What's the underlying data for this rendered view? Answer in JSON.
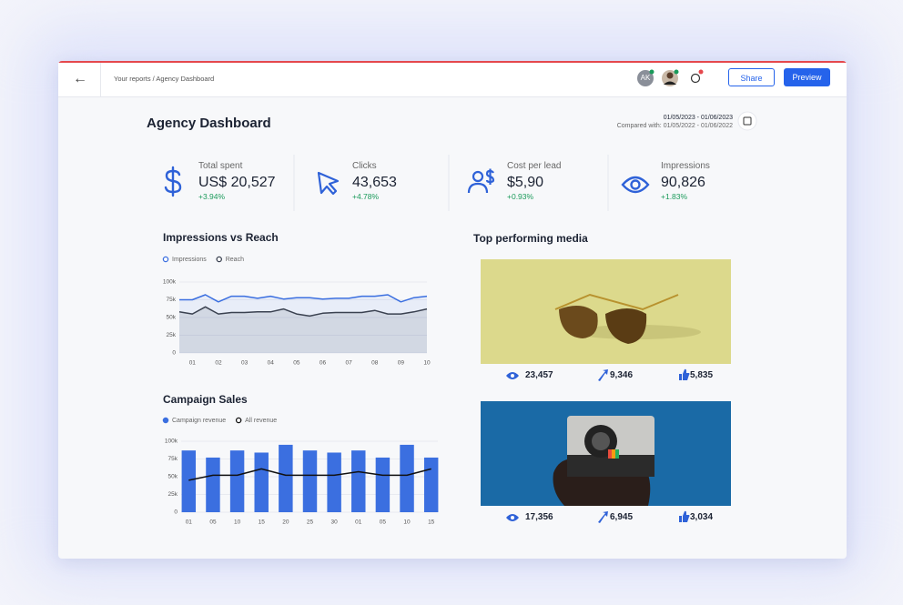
{
  "header": {
    "breadcrumb": "Your reports / Agency Dashboard",
    "avatar": "AK",
    "buttons": [
      "Share",
      "Preview"
    ]
  },
  "dashboard": {
    "title": "Agency Dashboard",
    "date_range": "01/05/2023 - 01/06/2023",
    "compared": "Compared with: 01/05/2022 - 01/06/2022"
  },
  "kpis": [
    {
      "label": "Total spent",
      "value": "US$ 20,527",
      "change": "+3.94%"
    },
    {
      "label": "Clicks",
      "value": "43,653",
      "change": "+4.78%"
    },
    {
      "label": "Cost per lead",
      "value": "$5,90",
      "change": "+0.93%"
    },
    {
      "label": "Impressions",
      "value": "90,826",
      "change": "+1.83%"
    }
  ],
  "chart_data": [
    {
      "type": "line",
      "title": "Impressions vs Reach",
      "categories": [
        null,
        "01",
        null,
        "02",
        null,
        "03",
        null,
        "04",
        null,
        "05",
        null,
        "06",
        null,
        "07",
        null,
        "08",
        null,
        "09",
        null,
        "10"
      ],
      "series": [
        {
          "name": "Impressions",
          "color": "#3b6fe0",
          "values": [
            75000,
            75000,
            82000,
            72000,
            80000,
            80000,
            77000,
            80000,
            76000,
            78000,
            78000,
            76000,
            77000,
            77000,
            80000,
            80000,
            82000,
            72000,
            78000,
            80000
          ]
        },
        {
          "name": "Reach",
          "color": "#3a4150",
          "values": [
            58000,
            55000,
            65000,
            55000,
            57000,
            57000,
            58000,
            58000,
            62000,
            55000,
            52000,
            56000,
            57000,
            57000,
            57000,
            60000,
            55000,
            55000,
            58000,
            62000
          ]
        }
      ],
      "ylim": [
        0,
        100000
      ],
      "yticks": [
        0,
        {
          "value": 25000,
          "label": "25k"
        },
        {
          "value": 50000,
          "label": "50k"
        },
        {
          "value": 75000,
          "label": "75k"
        },
        {
          "value": 100000,
          "label": "100k"
        }
      ],
      "grid": true
    },
    {
      "type": "bar",
      "title": "Campaign Sales",
      "categories": [
        "01",
        "05",
        "10",
        "15",
        "20",
        "25",
        "30",
        "01",
        "05",
        "10",
        "15"
      ],
      "series": [
        {
          "name": "Campaign revenue",
          "color": "#3b6fe0",
          "values": [
            87000,
            77000,
            87000,
            84000,
            95000,
            87000,
            84000,
            87000,
            77000,
            95000,
            77000
          ]
        },
        {
          "name": "All revenue",
          "type": "line",
          "color": "#111111",
          "values": [
            45000,
            52000,
            52000,
            61000,
            52000,
            52000,
            52000,
            57000,
            52000,
            52000,
            61000
          ]
        }
      ],
      "ylim": [
        0,
        100000
      ],
      "yticks": [
        0,
        {
          "value": 25000,
          "label": "25k"
        },
        {
          "value": 50000,
          "label": "50k"
        },
        {
          "value": 75000,
          "label": "75k"
        },
        {
          "value": 100000,
          "label": "100k"
        }
      ],
      "grid": true
    }
  ],
  "media": {
    "title": "Top performing media",
    "items": [
      {
        "views": "23,457",
        "shares": "9,346",
        "likes": "5,835"
      },
      {
        "views": "17,356",
        "shares": "6,945",
        "likes": "3,034"
      }
    ]
  }
}
